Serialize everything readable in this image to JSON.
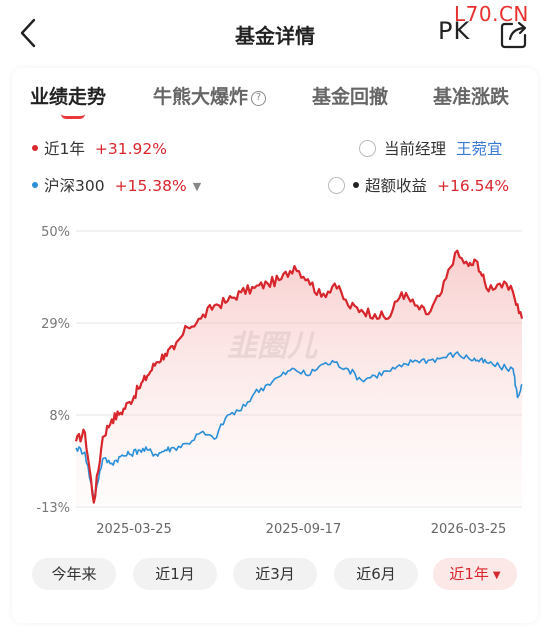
{
  "header": {
    "title": "基金详情",
    "pk_label": "PK",
    "corner_watermark": "L70.CN"
  },
  "tabs": [
    {
      "label": "业绩走势",
      "active": true
    },
    {
      "label": "牛熊大爆炸",
      "active": false,
      "has_help_icon": true,
      "help_glyph": "?"
    },
    {
      "label": "基金回撤",
      "active": false
    },
    {
      "label": "基准涨跌",
      "active": false
    }
  ],
  "legend": {
    "fund": {
      "label": "近1年",
      "value": "+31.92%",
      "color": "#d8262d"
    },
    "benchmark": {
      "label": "沪深300",
      "value": "+15.38%",
      "color": "#2a8fd6",
      "caret": "▼"
    },
    "manager": {
      "label": "当前经理",
      "name": "王菀宜"
    },
    "excess": {
      "label": "超额收益",
      "value": "+16.54%",
      "color": "#222222"
    }
  },
  "chart_watermark": "韭圈儿",
  "chart_data": {
    "type": "line",
    "x_ticks": [
      "2025-03-25",
      "2025-09-17",
      "2026-03-25"
    ],
    "y_ticks": [
      "50%",
      "29%",
      "8%",
      "-13%"
    ],
    "ylim": [
      -13,
      50
    ],
    "grid": true,
    "series": [
      {
        "name": "近1年",
        "color": "#d8262d",
        "fill": true,
        "x": [
          0,
          2,
          4,
          6,
          8,
          10,
          12,
          14,
          16,
          18,
          20,
          22,
          25,
          28,
          31,
          34,
          37,
          40,
          43,
          46,
          49,
          52,
          55,
          58,
          61,
          64,
          67,
          70,
          73,
          76,
          79,
          82,
          85,
          88,
          90,
          92,
          95,
          98,
          100
        ],
        "y": [
          2,
          4,
          -12,
          3,
          7,
          8.5,
          11,
          14,
          17,
          20,
          22,
          23,
          28,
          30,
          33,
          34,
          36,
          37,
          38,
          39,
          42,
          39,
          35,
          38,
          33,
          32,
          31,
          30,
          36,
          33,
          31,
          36,
          45,
          42,
          43,
          37,
          38,
          36,
          30
        ]
      },
      {
        "name": "沪深300",
        "color": "#2a8fd6",
        "fill": false,
        "x": [
          0,
          2,
          4,
          6,
          8,
          10,
          12,
          14,
          16,
          18,
          20,
          22,
          25,
          28,
          31,
          34,
          37,
          40,
          43,
          46,
          49,
          52,
          55,
          58,
          61,
          64,
          67,
          70,
          73,
          76,
          79,
          82,
          85,
          88,
          90,
          92,
          95,
          98,
          99,
          100
        ],
        "y": [
          0.5,
          -0.5,
          -11,
          -2,
          -3,
          -1.5,
          -1,
          0,
          0,
          -1,
          0,
          0.5,
          1.5,
          4,
          2.5,
          8,
          9,
          13,
          15,
          17,
          18.5,
          17,
          19.5,
          20,
          18.5,
          16,
          17,
          18,
          19,
          20.5,
          20.5,
          21,
          22,
          21,
          20.5,
          20,
          19,
          18.5,
          12,
          15
        ]
      }
    ]
  },
  "ranges": [
    {
      "label": "今年来",
      "active": false
    },
    {
      "label": "近1月",
      "active": false
    },
    {
      "label": "近3月",
      "active": false
    },
    {
      "label": "近6月",
      "active": false
    },
    {
      "label": "近1年",
      "active": true,
      "caret": "▼"
    }
  ]
}
